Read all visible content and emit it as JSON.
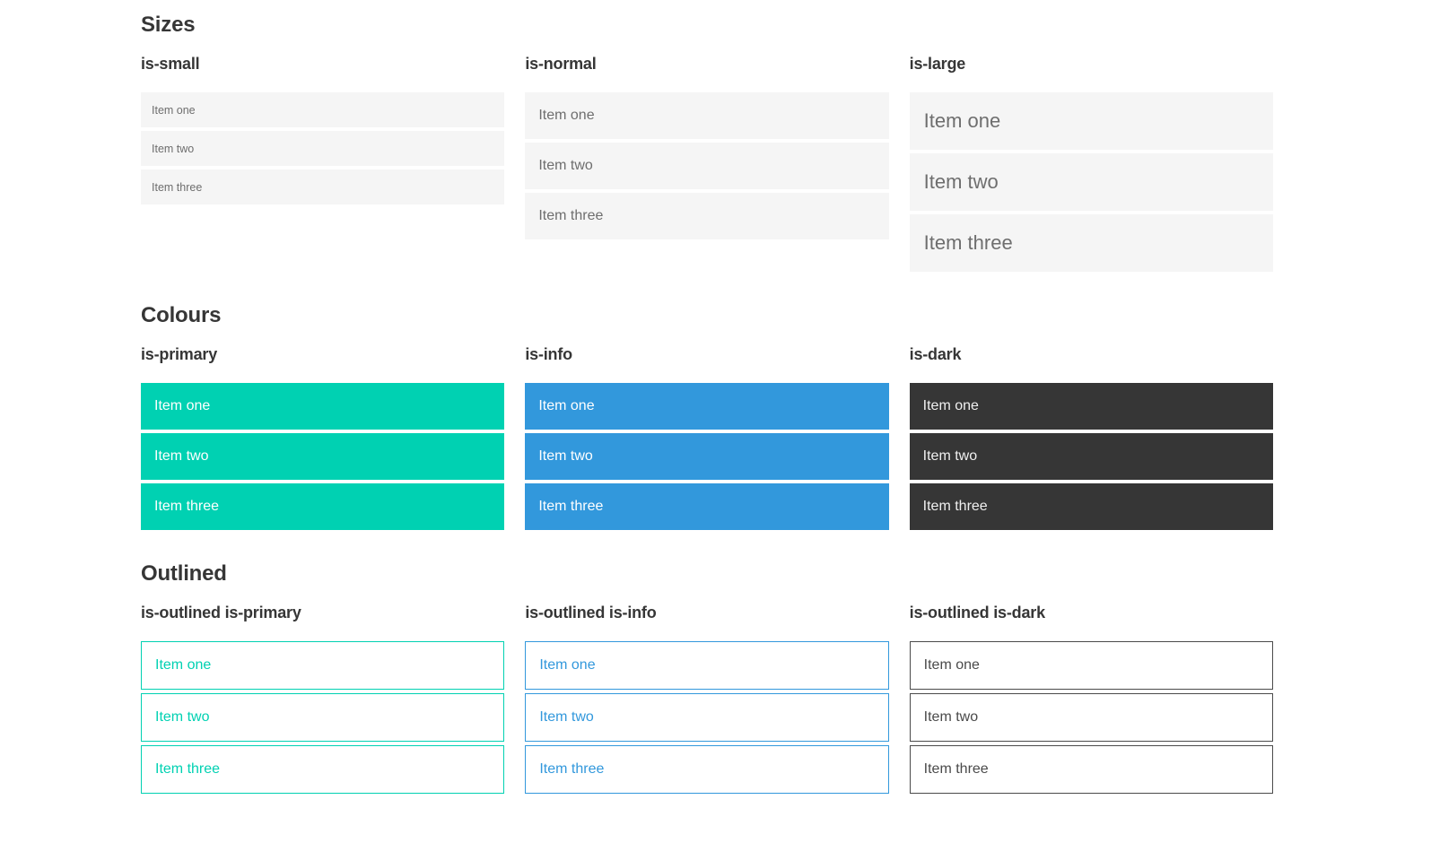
{
  "colors": {
    "primary": "#00d1b2",
    "info": "#3298dc",
    "dark": "#363636",
    "heading": "#363636",
    "item_bg": "#f5f5f5",
    "item_text": "#6e6e6e",
    "item_text_on_color": "#ffffff",
    "dark_item_text": "#f0f0f0",
    "outlined_dark": "#4a4a4a"
  },
  "sections": [
    {
      "title": "Sizes",
      "variants": [
        {
          "label": "is-small",
          "items": [
            "Item one",
            "Item two",
            "Item three"
          ]
        },
        {
          "label": "is-normal",
          "items": [
            "Item one",
            "Item two",
            "Item three"
          ]
        },
        {
          "label": "is-large",
          "items": [
            "Item one",
            "Item two",
            "Item three"
          ]
        }
      ]
    },
    {
      "title": "Colours",
      "variants": [
        {
          "label": "is-primary",
          "items": [
            "Item one",
            "Item two",
            "Item three"
          ]
        },
        {
          "label": "is-info",
          "items": [
            "Item one",
            "Item two",
            "Item three"
          ]
        },
        {
          "label": "is-dark",
          "items": [
            "Item one",
            "Item two",
            "Item three"
          ]
        }
      ]
    },
    {
      "title": "Outlined",
      "variants": [
        {
          "label": "is-outlined is-primary",
          "items": [
            "Item one",
            "Item two",
            "Item three"
          ]
        },
        {
          "label": "is-outlined is-info",
          "items": [
            "Item one",
            "Item two",
            "Item three"
          ]
        },
        {
          "label": "is-outlined is-dark",
          "items": [
            "Item one",
            "Item two",
            "Item three"
          ]
        }
      ]
    }
  ]
}
